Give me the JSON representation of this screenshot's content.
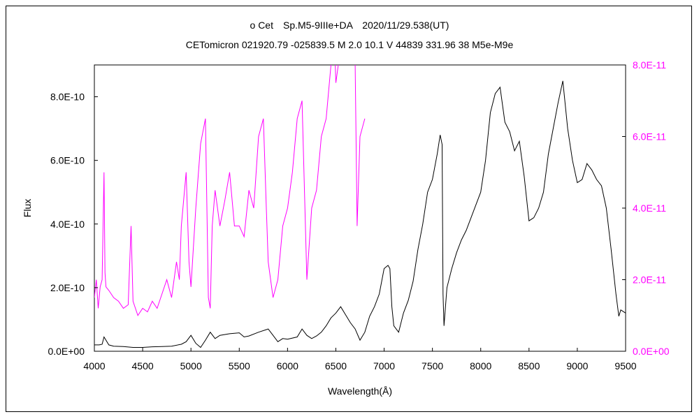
{
  "chart_data": {
    "type": "line",
    "title_line1": "ο Cet　Sp.M5-9IIIe+DA　2020/11/29.538(UT)",
    "title_line2": "CETomicron 021920.79 -025839.5 M 2.0 10.1 V 44839 331.96 38 M5e-M9e",
    "xlabel": "Wavelength(Å)",
    "ylabel": "Flux",
    "xlim": [
      4000,
      9500
    ],
    "xticks": [
      "4000",
      "4500",
      "5000",
      "5500",
      "6000",
      "6500",
      "7000",
      "7500",
      "8000",
      "8500",
      "9000",
      "9500"
    ],
    "ylim_left": [
      0,
      9e-10
    ],
    "yticks_left": [
      "0.0E+00",
      "2.0E-10",
      "4.0E-10",
      "6.0E-10",
      "8.0E-10"
    ],
    "ylim_right": [
      0,
      8e-11
    ],
    "yticks_right": [
      "0.0E+00",
      "2.0E-11",
      "4.0E-11",
      "6.0E-11",
      "8.0E-11"
    ],
    "grid": false,
    "colors": {
      "primary": "#000000",
      "secondary": "#ff00ff"
    },
    "series": [
      {
        "axis": "left",
        "color": "#000000",
        "x": [
          4000,
          4050,
          4080,
          4100,
          4150,
          4200,
          4300,
          4400,
          4500,
          4600,
          4700,
          4800,
          4900,
          4950,
          5000,
          5050,
          5100,
          5150,
          5200,
          5250,
          5300,
          5400,
          5500,
          5550,
          5600,
          5700,
          5800,
          5850,
          5900,
          5950,
          6000,
          6100,
          6150,
          6200,
          6250,
          6300,
          6350,
          6400,
          6450,
          6500,
          6550,
          6600,
          6650,
          6700,
          6750,
          6800,
          6850,
          6900,
          6950,
          7000,
          7040,
          7060,
          7080,
          7100,
          7150,
          7200,
          7250,
          7300,
          7350,
          7400,
          7450,
          7500,
          7550,
          7580,
          7600,
          7610,
          7620,
          7650,
          7700,
          7750,
          7800,
          7850,
          7900,
          7950,
          8000,
          8050,
          8100,
          8150,
          8200,
          8250,
          8300,
          8350,
          8400,
          8450,
          8500,
          8550,
          8600,
          8650,
          8700,
          8750,
          8800,
          8850,
          8900,
          8950,
          9000,
          9050,
          9100,
          9150,
          9200,
          9250,
          9300,
          9350,
          9400,
          9430,
          9450,
          9500
        ],
        "y": [
          2e-11,
          2e-11,
          2.2e-11,
          4.5e-11,
          2e-11,
          1.6e-11,
          1.5e-11,
          1.2e-11,
          1.2e-11,
          1.4e-11,
          1.5e-11,
          1.6e-11,
          2.2e-11,
          3e-11,
          5e-11,
          2.5e-11,
          1.2e-11,
          3.5e-11,
          6e-11,
          4e-11,
          5e-11,
          5.5e-11,
          5.8e-11,
          4.5e-11,
          4.8e-11,
          6e-11,
          7e-11,
          5e-11,
          3e-11,
          4e-11,
          3.8e-11,
          4.5e-11,
          7e-11,
          5e-11,
          4e-11,
          4.8e-11,
          6e-11,
          8e-11,
          1.05e-10,
          1.2e-10,
          1.4e-10,
          1.15e-10,
          9e-11,
          7e-11,
          3.5e-11,
          6e-11,
          1.1e-10,
          1.4e-10,
          1.8e-10,
          2.6e-10,
          2.7e-10,
          2.6e-10,
          1.4e-10,
          8e-11,
          6e-11,
          1.2e-10,
          1.6e-10,
          2.2e-10,
          3.2e-10,
          4e-10,
          5e-10,
          5.4e-10,
          6.2e-10,
          6.8e-10,
          6.5e-10,
          1.8e-10,
          8e-11,
          2e-10,
          2.6e-10,
          3.1e-10,
          3.5e-10,
          3.8e-10,
          4.2e-10,
          4.6e-10,
          5e-10,
          6e-10,
          7.5e-10,
          8.1e-10,
          8.3e-10,
          7.2e-10,
          6.9e-10,
          6.3e-10,
          6.6e-10,
          5.5e-10,
          4.1e-10,
          4.2e-10,
          4.5e-10,
          5e-10,
          6.2e-10,
          7e-10,
          7.8e-10,
          8.5e-10,
          7e-10,
          6e-10,
          5.3e-10,
          5.4e-10,
          5.9e-10,
          5.7e-10,
          5.4e-10,
          5.2e-10,
          4.5e-10,
          3.2e-10,
          1.8e-10,
          1.1e-10,
          1.3e-10,
          1.2e-10
        ]
      },
      {
        "axis": "right",
        "color": "#ff00ff",
        "x": [
          4000,
          4020,
          4040,
          4060,
          4080,
          4100,
          4110,
          4120,
          4150,
          4200,
          4250,
          4300,
          4350,
          4380,
          4400,
          4450,
          4500,
          4550,
          4600,
          4650,
          4700,
          4750,
          4800,
          4850,
          4880,
          4900,
          4950,
          4980,
          5000,
          5050,
          5100,
          5150,
          5180,
          5200,
          5220,
          5250,
          5300,
          5350,
          5400,
          5450,
          5500,
          5550,
          5600,
          5650,
          5700,
          5750,
          5780,
          5800,
          5850,
          5900,
          5950,
          6000,
          6050,
          6100,
          6150,
          6200,
          6250,
          6300,
          6350,
          6400,
          6450,
          6480,
          6500,
          6550,
          6600,
          6650,
          6700,
          6720,
          6750,
          6800
        ],
        "y": [
          1.5e-11,
          2e-11,
          1.2e-11,
          1.8e-11,
          2e-11,
          5e-11,
          2.2e-11,
          1.8e-11,
          1.7e-11,
          1.5e-11,
          1.4e-11,
          1.2e-11,
          1.3e-11,
          3.5e-11,
          1.4e-11,
          1e-11,
          1.2e-11,
          1.1e-11,
          1.4e-11,
          1.2e-11,
          1.6e-11,
          2e-11,
          1.5e-11,
          2.5e-11,
          2e-11,
          3.5e-11,
          5e-11,
          2.5e-11,
          1.8e-11,
          4e-11,
          5.8e-11,
          6.5e-11,
          1.5e-11,
          1.2e-11,
          3.5e-11,
          4.5e-11,
          3.5e-11,
          4.2e-11,
          5e-11,
          3.5e-11,
          3.5e-11,
          3.2e-11,
          4.5e-11,
          4e-11,
          6e-11,
          6.5e-11,
          4e-11,
          2.5e-11,
          1.5e-11,
          2e-11,
          3.5e-11,
          4e-11,
          5e-11,
          6.5e-11,
          7e-11,
          2e-11,
          4e-11,
          4.5e-11,
          6e-11,
          6.5e-11,
          8e-11,
          9e-11,
          7.5e-11,
          8.5e-11,
          9e-11,
          9e-11,
          8e-11,
          3.5e-11,
          6e-11,
          6.5e-11
        ]
      }
    ]
  }
}
